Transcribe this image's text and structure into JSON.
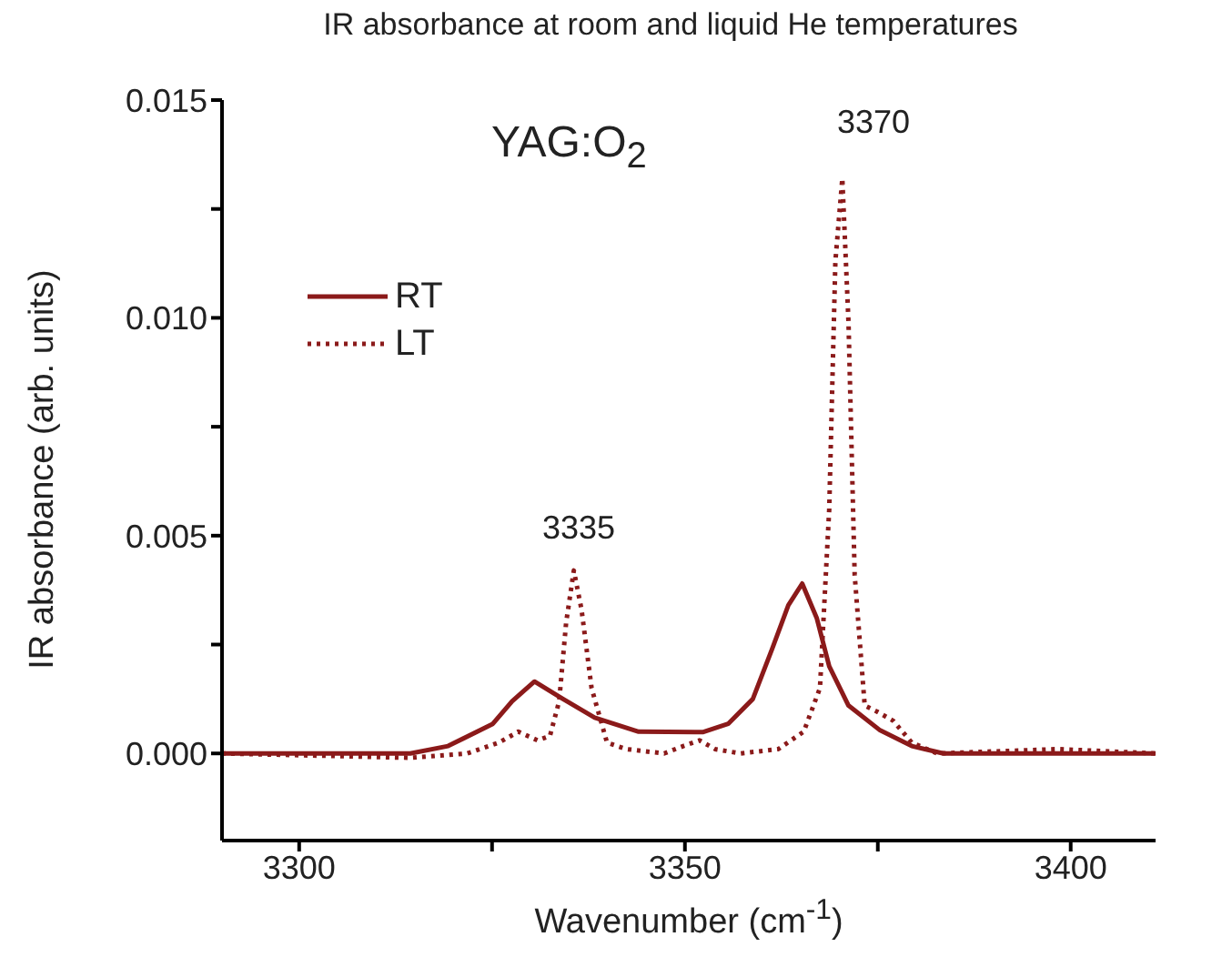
{
  "chart_data": {
    "type": "line",
    "title": "IR absorbance at room and liquid He temperatures",
    "xlabel": "Wavenumber (cm$^{-1}$)",
    "ylabel": "IR absorbance (arb. units)",
    "annotations": [
      "YAG:O$_{2}$",
      "3335",
      "3370"
    ],
    "xlim": [
      3290,
      3411
    ],
    "xticks": [
      3300,
      {
        "value": 3325,
        "label": null
      },
      3350,
      {
        "value": 3375,
        "label": null
      },
      3400
    ],
    "ylim": [
      -0.002,
      0.015
    ],
    "yticks": [
      {
        "value": 0,
        "label": "0.000"
      },
      {
        "value": 0.0025,
        "label": null
      },
      {
        "value": 0.005,
        "label": "0.005"
      },
      {
        "value": 0.0075,
        "label": null
      },
      {
        "value": 0.01,
        "label": "0.010"
      },
      {
        "value": 0.0125,
        "label": null
      },
      {
        "value": 0.015,
        "label": "0.015"
      }
    ],
    "grid": false,
    "legend": "top left",
    "marker": "none",
    "series": [
      {
        "name": "RT",
        "color": "#8b1a1a",
        "line_style": "solid",
        "x": [
          3290,
          3314.4,
          3319.3,
          3325.1,
          3327.6,
          3330.5,
          3334.2,
          3338.3,
          3344,
          3352.3,
          3355.6,
          3358.8,
          3361.3,
          3363.4,
          3365.2,
          3367.1,
          3368.7,
          3371.2,
          3375.3,
          3379.4,
          3383.5,
          3411
        ],
        "values": [
          0,
          0,
          0.00017,
          0.00068,
          0.0012,
          0.00165,
          0.00125,
          0.00082,
          0.0005,
          0.00049,
          0.00068,
          0.00125,
          0.0024,
          0.0034,
          0.0039,
          0.0031,
          0.002,
          0.0011,
          0.00053,
          0.00017,
          0,
          0
        ]
      },
      {
        "name": "LT",
        "color": "#8b1a1a",
        "line_style": "dotted",
        "x": [
          3290,
          3314.4,
          3321.8,
          3325.9,
          3328.4,
          3330.9,
          3332.5,
          3333.7,
          3334.6,
          3335.6,
          3336.6,
          3337.9,
          3339.9,
          3342.4,
          3347.3,
          3349.8,
          3351.9,
          3353.9,
          3357.2,
          3362.1,
          3365.4,
          3367.5,
          3368.7,
          3369.5,
          3370.4,
          3371.2,
          3372,
          3373.3,
          3374.9,
          3377,
          3379.4,
          3382.7,
          3398.4,
          3411
        ],
        "values": [
          0,
          -0.0001,
          0,
          0.00025,
          0.0005,
          0.0003,
          0.0004,
          0.0012,
          0.003,
          0.0042,
          0.0033,
          0.0015,
          0.00025,
          0.0001,
          0,
          0.00017,
          0.0003,
          0.0001,
          0,
          0.0001,
          0.0005,
          0.0015,
          0.0056,
          0.0113,
          0.0132,
          0.0099,
          0.0041,
          0.0011,
          0.00096,
          0.00075,
          0.00025,
          0,
          0.0001,
          0
        ]
      }
    ]
  }
}
